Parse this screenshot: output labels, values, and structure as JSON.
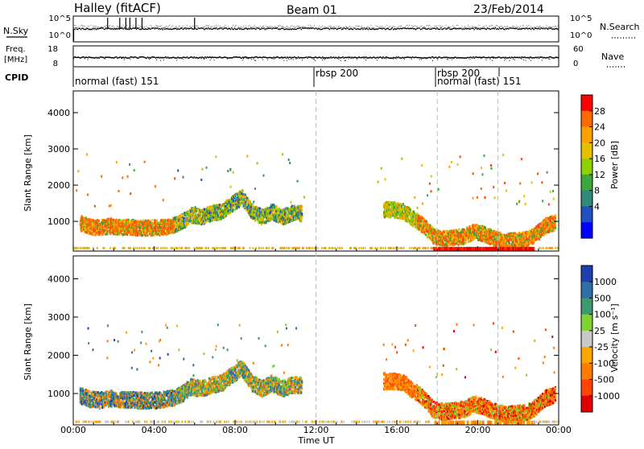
{
  "header": {
    "station": "Halley (fitACF)",
    "beam": "Beam 01",
    "date": "23/Feb/2014"
  },
  "left_labels": {
    "nsky": "N.Sky",
    "freq": "Freq.",
    "mhz": "[MHz]",
    "cpid": "CPID"
  },
  "right_labels": {
    "nsearch": "N.Search",
    "nave": "Nave"
  },
  "noise_panel": {
    "left_ticks": [
      "10^5",
      "10^0"
    ],
    "right_ticks": [
      "10^5",
      "10^0"
    ]
  },
  "freq_panel": {
    "left_ticks": [
      "18",
      "8"
    ],
    "right_ticks": [
      "60",
      "0"
    ]
  },
  "cpid_segments": [
    {
      "label": "normal (fast) 151",
      "start_hour": 0
    },
    {
      "label": "rbsp 200",
      "start_hour": 12
    },
    {
      "label": "rbsp 200",
      "start_hour": 18
    },
    {
      "label": "normal (fast) 151",
      "start_hour": 18
    }
  ],
  "colorbars": {
    "power": {
      "label": "Power [dB]",
      "ticks": [
        "28",
        "24",
        "20",
        "16",
        "12",
        "8",
        "4"
      ],
      "colors": [
        "#ff0000",
        "#ff6a00",
        "#ff9f00",
        "#e3c000",
        "#8cd000",
        "#3ba83b",
        "#2e8a7a",
        "#1f4fc0",
        "#0000ff"
      ]
    },
    "velocity": {
      "label": "Velocity [m s⁻¹]",
      "ticks": [
        "1000",
        "500",
        "100",
        "25",
        "-25",
        "-100",
        "-500",
        "-1000"
      ],
      "colors": [
        "#1d3fb0",
        "#2f6ea8",
        "#3d9a6e",
        "#7ed332",
        "#c8c8c8",
        "#ffa500",
        "#ff7a00",
        "#ff4500",
        "#e00000"
      ]
    }
  },
  "chart_data": [
    {
      "type": "heatmap",
      "title": "Power",
      "xlabel": "",
      "ylabel": "Slant Range [km]",
      "xlim": [
        0,
        24
      ],
      "ylim": [
        180,
        4600
      ],
      "y_ticks": [
        "4000",
        "3000",
        "2000",
        "1000"
      ],
      "grid": false,
      "series": [
        {
          "name": "backscatter band",
          "points": [
            [
              0.3,
              980
            ],
            [
              0.8,
              880
            ],
            [
              1.3,
              850
            ],
            [
              1.8,
              900
            ],
            [
              2.3,
              860
            ],
            [
              2.8,
              870
            ],
            [
              3.3,
              840
            ],
            [
              3.8,
              850
            ],
            [
              4.3,
              860
            ],
            [
              4.8,
              900
            ],
            [
              5.3,
              1000
            ],
            [
              5.8,
              1200
            ],
            [
              6.3,
              1150
            ],
            [
              6.8,
              1250
            ],
            [
              7.3,
              1300
            ],
            [
              7.8,
              1500
            ],
            [
              8.3,
              1700
            ],
            [
              8.8,
              1300
            ],
            [
              9.3,
              1150
            ],
            [
              9.8,
              1300
            ],
            [
              10.3,
              1150
            ],
            [
              10.8,
              1250
            ],
            [
              11.3,
              1250
            ],
            [
              15.3,
              1350
            ],
            [
              15.8,
              1350
            ],
            [
              16.3,
              1300
            ],
            [
              16.8,
              1100
            ],
            [
              17.3,
              900
            ],
            [
              17.8,
              600
            ],
            [
              18.3,
              550
            ],
            [
              18.8,
              580
            ],
            [
              19.3,
              620
            ],
            [
              19.8,
              750
            ],
            [
              20.3,
              680
            ],
            [
              20.8,
              550
            ],
            [
              21.3,
              480
            ],
            [
              21.8,
              500
            ],
            [
              22.3,
              520
            ],
            [
              22.8,
              650
            ],
            [
              23.3,
              900
            ],
            [
              23.8,
              1000
            ]
          ]
        },
        {
          "name": "ground scatter strip",
          "range_km": 250,
          "x_range": [
            17.8,
            22.8
          ]
        }
      ]
    },
    {
      "type": "heatmap",
      "title": "Velocity",
      "xlabel": "Time UT",
      "ylabel": "Slant Range [km]",
      "xlim": [
        0,
        24
      ],
      "ylim": [
        180,
        4600
      ],
      "x_ticks": [
        "00:00",
        "04:00",
        "08:00",
        "12:00",
        "16:00",
        "20:00",
        "00:00"
      ],
      "y_ticks": [
        "4000",
        "3000",
        "2000",
        "1000"
      ],
      "grid": false
    }
  ]
}
